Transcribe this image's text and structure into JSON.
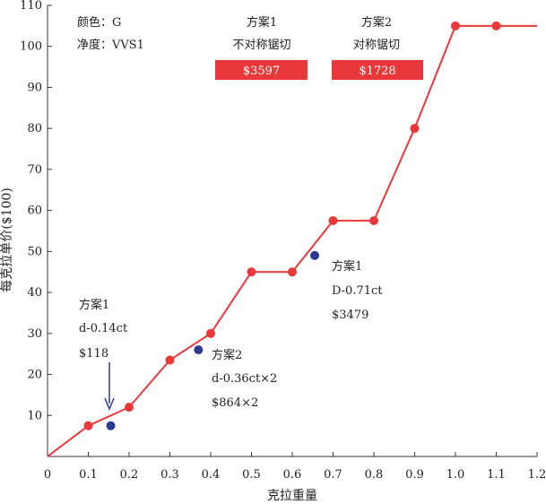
{
  "chart_data": {
    "type": "line",
    "xlabel": "克拉重量",
    "ylabel": "每克拉单价($100)",
    "xlim": [
      0,
      1.2
    ],
    "ylim": [
      0,
      110
    ],
    "x_ticks": [
      "0",
      "0.1",
      "0.2",
      "0.3",
      "0.4",
      "0.5",
      "0.6",
      "0.7",
      "0.8",
      "0.9",
      "1.0",
      "1.1",
      "1.2"
    ],
    "y_ticks": [
      "10",
      "20",
      "30",
      "40",
      "50",
      "60",
      "70",
      "80",
      "90",
      "100",
      "110"
    ],
    "colors": {
      "line": "#e8383a",
      "points": "#e8383a",
      "highlight": "#2b3a8f",
      "badge": "#e8383a"
    },
    "series": [
      {
        "x": [
          0,
          0.1,
          0.2,
          0.3,
          0.4,
          0.5,
          0.6,
          0.7,
          0.8,
          0.9,
          1.0,
          1.1,
          1.2
        ],
        "y": [
          0,
          7.5,
          12,
          23.5,
          30,
          45,
          45,
          57.5,
          57.5,
          80,
          105,
          105,
          105
        ],
        "markers": [
          false,
          true,
          true,
          true,
          true,
          true,
          true,
          true,
          true,
          true,
          true,
          true,
          false
        ]
      }
    ],
    "highlight_points": [
      {
        "x": 0.155,
        "y": 7.5
      },
      {
        "x": 0.37,
        "y": 26
      },
      {
        "x": 0.655,
        "y": 49
      }
    ],
    "info": {
      "color": "颜色：G",
      "clarity": "净度：VVS1"
    },
    "plans": [
      {
        "title": "方案1",
        "subtitle": "不对称锯切",
        "price": "$3597"
      },
      {
        "title": "方案2",
        "subtitle": "对称锯切",
        "price": "$1728"
      }
    ],
    "annotations": [
      {
        "lines": [
          "方案1",
          "d-0.14ct",
          "$118"
        ]
      },
      {
        "lines": [
          "方案2",
          "d-0.36ct×2",
          "$864×2"
        ]
      },
      {
        "lines": [
          "方案1",
          "D-0.71ct",
          "$3479"
        ]
      }
    ]
  }
}
